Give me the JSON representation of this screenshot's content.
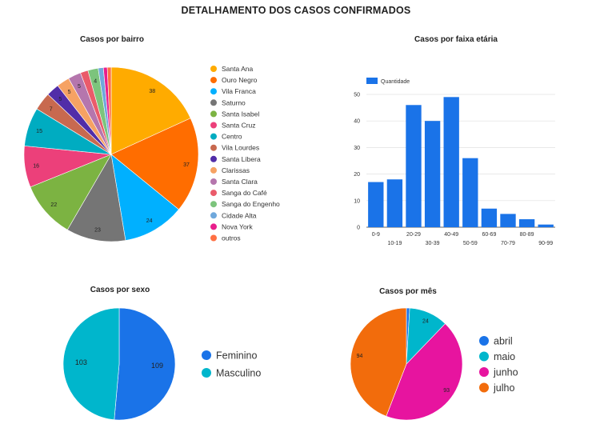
{
  "page": {
    "title": "DETALHAMENTO DOS CASOS CONFIRMADOS"
  },
  "chart_data": [
    {
      "id": "bairro",
      "type": "pie",
      "title": "Casos por bairro",
      "legend_position": "right",
      "slices": [
        {
          "label": "Santa Ana",
          "value": 38,
          "color": "#ffab00",
          "show_label": true
        },
        {
          "label": "Ouro Negro",
          "value": 37,
          "color": "#ff6d00",
          "show_label": true
        },
        {
          "label": "Vila Franca",
          "value": 24,
          "color": "#00b0ff",
          "show_label": true
        },
        {
          "label": "Saturno",
          "value": 23,
          "color": "#757575",
          "show_label": true
        },
        {
          "label": "Santa Isabel",
          "value": 22,
          "color": "#7cb342",
          "show_label": true
        },
        {
          "label": "Santa Cruz",
          "value": 16,
          "color": "#ec407a",
          "show_label": true
        },
        {
          "label": "Centro",
          "value": 15,
          "color": "#00acc1",
          "show_label": true
        },
        {
          "label": "Vila Lourdes",
          "value": 7,
          "color": "#c8694f",
          "show_label": true
        },
        {
          "label": "Santa Líbera",
          "value": 5,
          "color": "#512da8",
          "show_label": true
        },
        {
          "label": "Clarissas",
          "value": 5,
          "color": "#f6a263",
          "show_label": true
        },
        {
          "label": "Santa Clara",
          "value": 5,
          "color": "#b576ad",
          "show_label": true
        },
        {
          "label": "Sanga do Café",
          "value": 3,
          "color": "#ea5b6a",
          "show_label": false
        },
        {
          "label": "Sanga do Engenho",
          "value": 4,
          "color": "#7cc47c",
          "show_label": true
        },
        {
          "label": "Cidade Alta",
          "value": 2,
          "color": "#6fa8dc",
          "show_label": false
        },
        {
          "label": "Nova York",
          "value": 1.5,
          "color": "#e91e8c",
          "show_label": false
        },
        {
          "label": "outros",
          "value": 1.5,
          "color": "#ff7043",
          "show_label": false
        }
      ]
    },
    {
      "id": "faixa",
      "type": "bar",
      "title": "Casos por faixa etária",
      "legend_position": "top-left",
      "series": [
        {
          "name": "Quantidade",
          "color": "#1a73e8",
          "values": [
            17,
            18,
            46,
            40,
            49,
            26,
            7,
            5,
            3,
            1
          ]
        }
      ],
      "categories": [
        "0-9",
        "10-19",
        "20-29",
        "30-39",
        "40-49",
        "50-59",
        "60-69",
        "70-79",
        "80-89",
        "90-99"
      ],
      "yticks": [
        0,
        10,
        20,
        30,
        40,
        50
      ],
      "ylim": [
        0,
        55
      ],
      "grid": true
    },
    {
      "id": "sexo",
      "type": "pie",
      "title": "Casos por sexo",
      "legend_position": "right",
      "slices": [
        {
          "label": "Feminino",
          "value": 109,
          "color": "#1a73e8",
          "show_label": true
        },
        {
          "label": "Masculino",
          "value": 103,
          "color": "#00b6cc",
          "show_label": true
        }
      ]
    },
    {
      "id": "mes",
      "type": "pie",
      "title": "Casos por mês",
      "legend_position": "right",
      "slices": [
        {
          "label": "abril",
          "value": 2,
          "color": "#1a73e8",
          "show_label": false
        },
        {
          "label": "maio",
          "value": 24,
          "color": "#00b6cc",
          "show_label": true
        },
        {
          "label": "junho",
          "value": 93,
          "color": "#e7149f",
          "show_label": true
        },
        {
          "label": "julho",
          "value": 94,
          "color": "#f26c0c",
          "show_label": true
        }
      ]
    }
  ]
}
